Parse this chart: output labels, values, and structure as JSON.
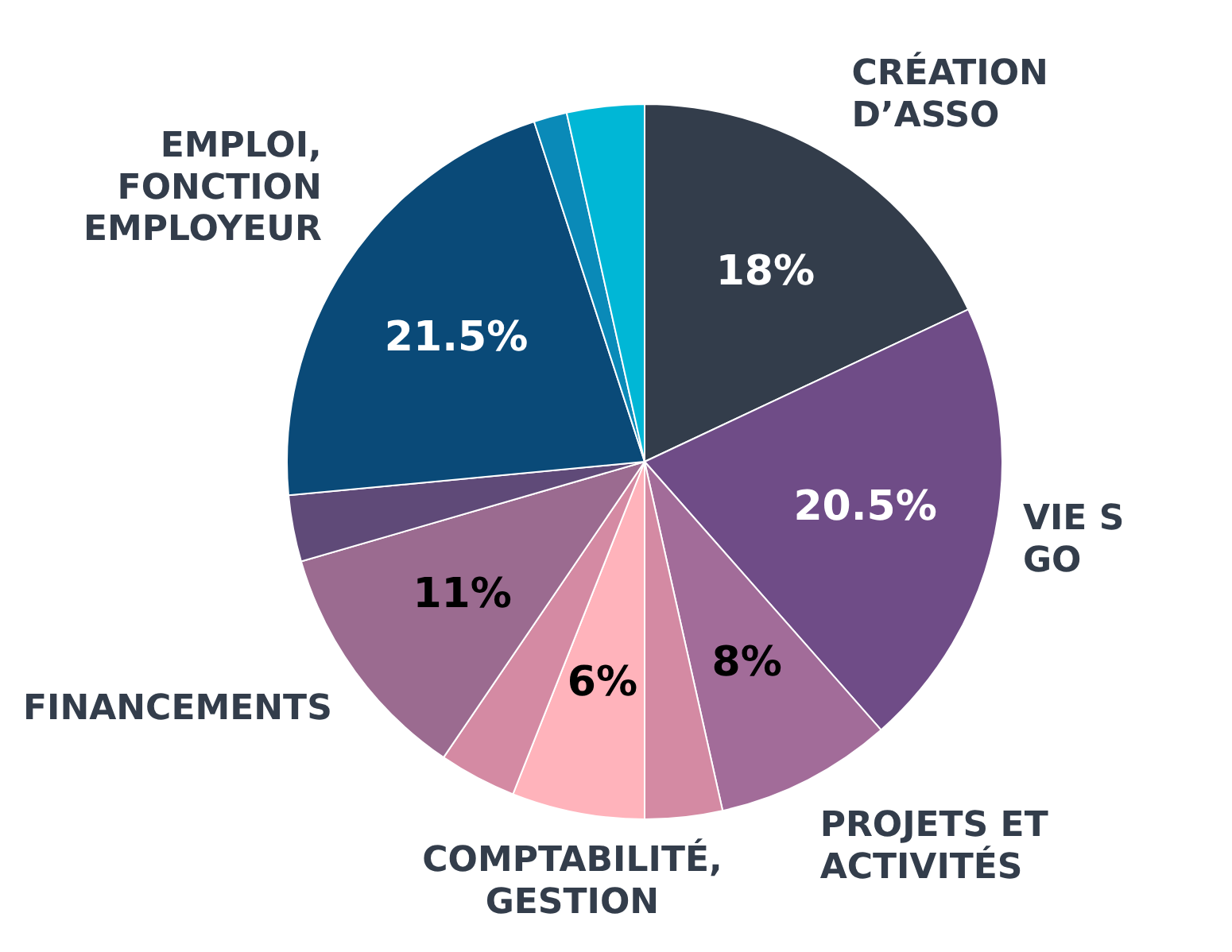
{
  "chart_data": {
    "type": "pie",
    "categories": [
      "CRÉATION\nD’ASSO",
      "VIE S\nGO",
      "PROJETS ET\nACTIVITÉS",
      null,
      "COMPTABILITÉ,\nGESTION",
      null,
      "FINANCEMENTS",
      null,
      "EMPLOI,\nFONCTION\nEMPLOYEUR",
      null,
      null
    ],
    "values": [
      18,
      20.5,
      8,
      3.5,
      6,
      3.5,
      11,
      3,
      21.5,
      1.5,
      3.5
    ],
    "value_labels": [
      "18%",
      "20.5%",
      "8%",
      null,
      "6%",
      null,
      "11%",
      null,
      "21.5%",
      null,
      null
    ],
    "colors": [
      "#333d4b",
      "#6f4c87",
      "#a26c99",
      "#d48aa3",
      "#ffb3bb",
      "#d48aa3",
      "#9b6b90",
      "#5f4a78",
      "#0a4a78",
      "#0a8ab8",
      "#00b7d6"
    ],
    "data_labels": false
  }
}
